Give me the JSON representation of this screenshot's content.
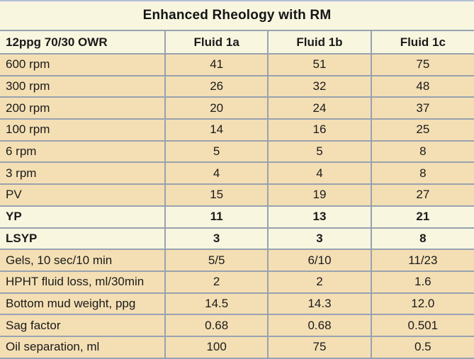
{
  "title": "Enhanced Rheology with RM",
  "colors": {
    "cream_background": "#f9f6e0",
    "tan_row_background": "#f4dfb4",
    "grid_border": "#98a2b0",
    "top_border": "#b2c0d6",
    "text": "#1a1a1a"
  },
  "chart_data": {
    "type": "table",
    "title": "Enhanced Rheology with RM",
    "columns": [
      "12ppg 70/30 OWR",
      "Fluid 1a",
      "Fluid 1b",
      "Fluid 1c"
    ],
    "rows": [
      {
        "label": "600 rpm",
        "values": [
          "41",
          "51",
          "75"
        ],
        "emphasis": false
      },
      {
        "label": "300 rpm",
        "values": [
          "26",
          "32",
          "48"
        ],
        "emphasis": false
      },
      {
        "label": "200 rpm",
        "values": [
          "20",
          "24",
          "37"
        ],
        "emphasis": false
      },
      {
        "label": "100 rpm",
        "values": [
          "14",
          "16",
          "25"
        ],
        "emphasis": false
      },
      {
        "label": "6 rpm",
        "values": [
          "5",
          "5",
          "8"
        ],
        "emphasis": false
      },
      {
        "label": "3 rpm",
        "values": [
          "4",
          "4",
          "8"
        ],
        "emphasis": false
      },
      {
        "label": "PV",
        "values": [
          "15",
          "19",
          "27"
        ],
        "emphasis": false
      },
      {
        "label": "YP",
        "values": [
          "11",
          "13",
          "21"
        ],
        "emphasis": true
      },
      {
        "label": "LSYP",
        "values": [
          "3",
          "3",
          "8"
        ],
        "emphasis": true
      },
      {
        "label": "Gels, 10 sec/10 min",
        "values": [
          "5/5",
          "6/10",
          "11/23"
        ],
        "emphasis": false
      },
      {
        "label": "HPHT fluid loss, ml/30min",
        "values": [
          "2",
          "2",
          "1.6"
        ],
        "emphasis": false
      },
      {
        "label": "Bottom mud weight, ppg",
        "values": [
          "14.5",
          "14.3",
          "12.0"
        ],
        "emphasis": false
      },
      {
        "label": "Sag factor",
        "values": [
          "0.68",
          "0.68",
          "0.501"
        ],
        "emphasis": false
      },
      {
        "label": "Oil separation, ml",
        "values": [
          "100",
          "75",
          "0.5"
        ],
        "emphasis": false
      }
    ]
  }
}
